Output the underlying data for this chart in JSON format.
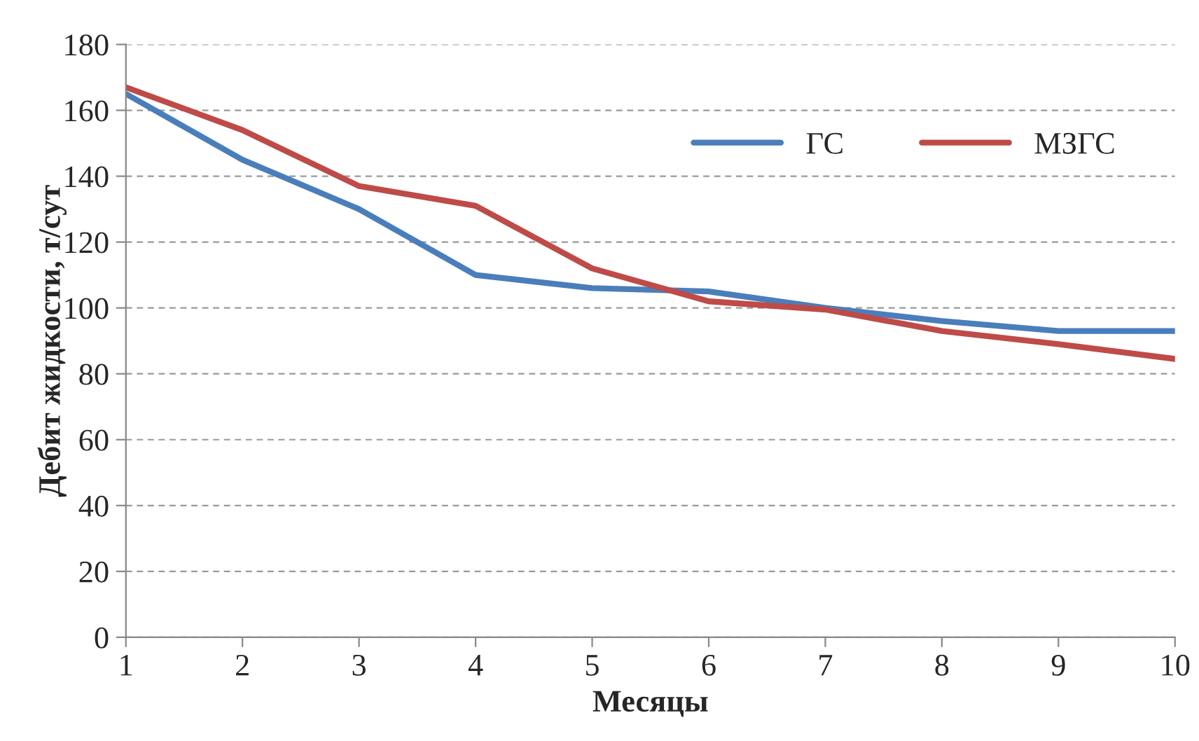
{
  "chart_data": {
    "type": "line",
    "xlabel": "Месяцы",
    "ylabel": "Дебит жидкости, т/сут",
    "x": [
      1,
      2,
      3,
      4,
      5,
      6,
      7,
      8,
      9,
      10
    ],
    "series": [
      {
        "name": "ГС",
        "color": "#4a7ebb",
        "values": [
          165,
          145,
          130,
          110,
          106,
          105,
          100,
          96,
          93,
          93
        ]
      },
      {
        "name": "МЗГС",
        "color": "#be4b48",
        "values": [
          167,
          154,
          137,
          131,
          112,
          102,
          99.5,
          93,
          89,
          84.5
        ]
      }
    ],
    "xlim": [
      1,
      10
    ],
    "xticks": [
      1,
      2,
      3,
      4,
      5,
      6,
      7,
      8,
      9,
      10
    ],
    "ylim": [
      0,
      180
    ],
    "yticks": [
      0,
      20,
      40,
      60,
      80,
      100,
      120,
      140,
      160,
      180
    ],
    "grid": "y",
    "legend": "top right",
    "marker": "none",
    "line_style": "solid"
  }
}
